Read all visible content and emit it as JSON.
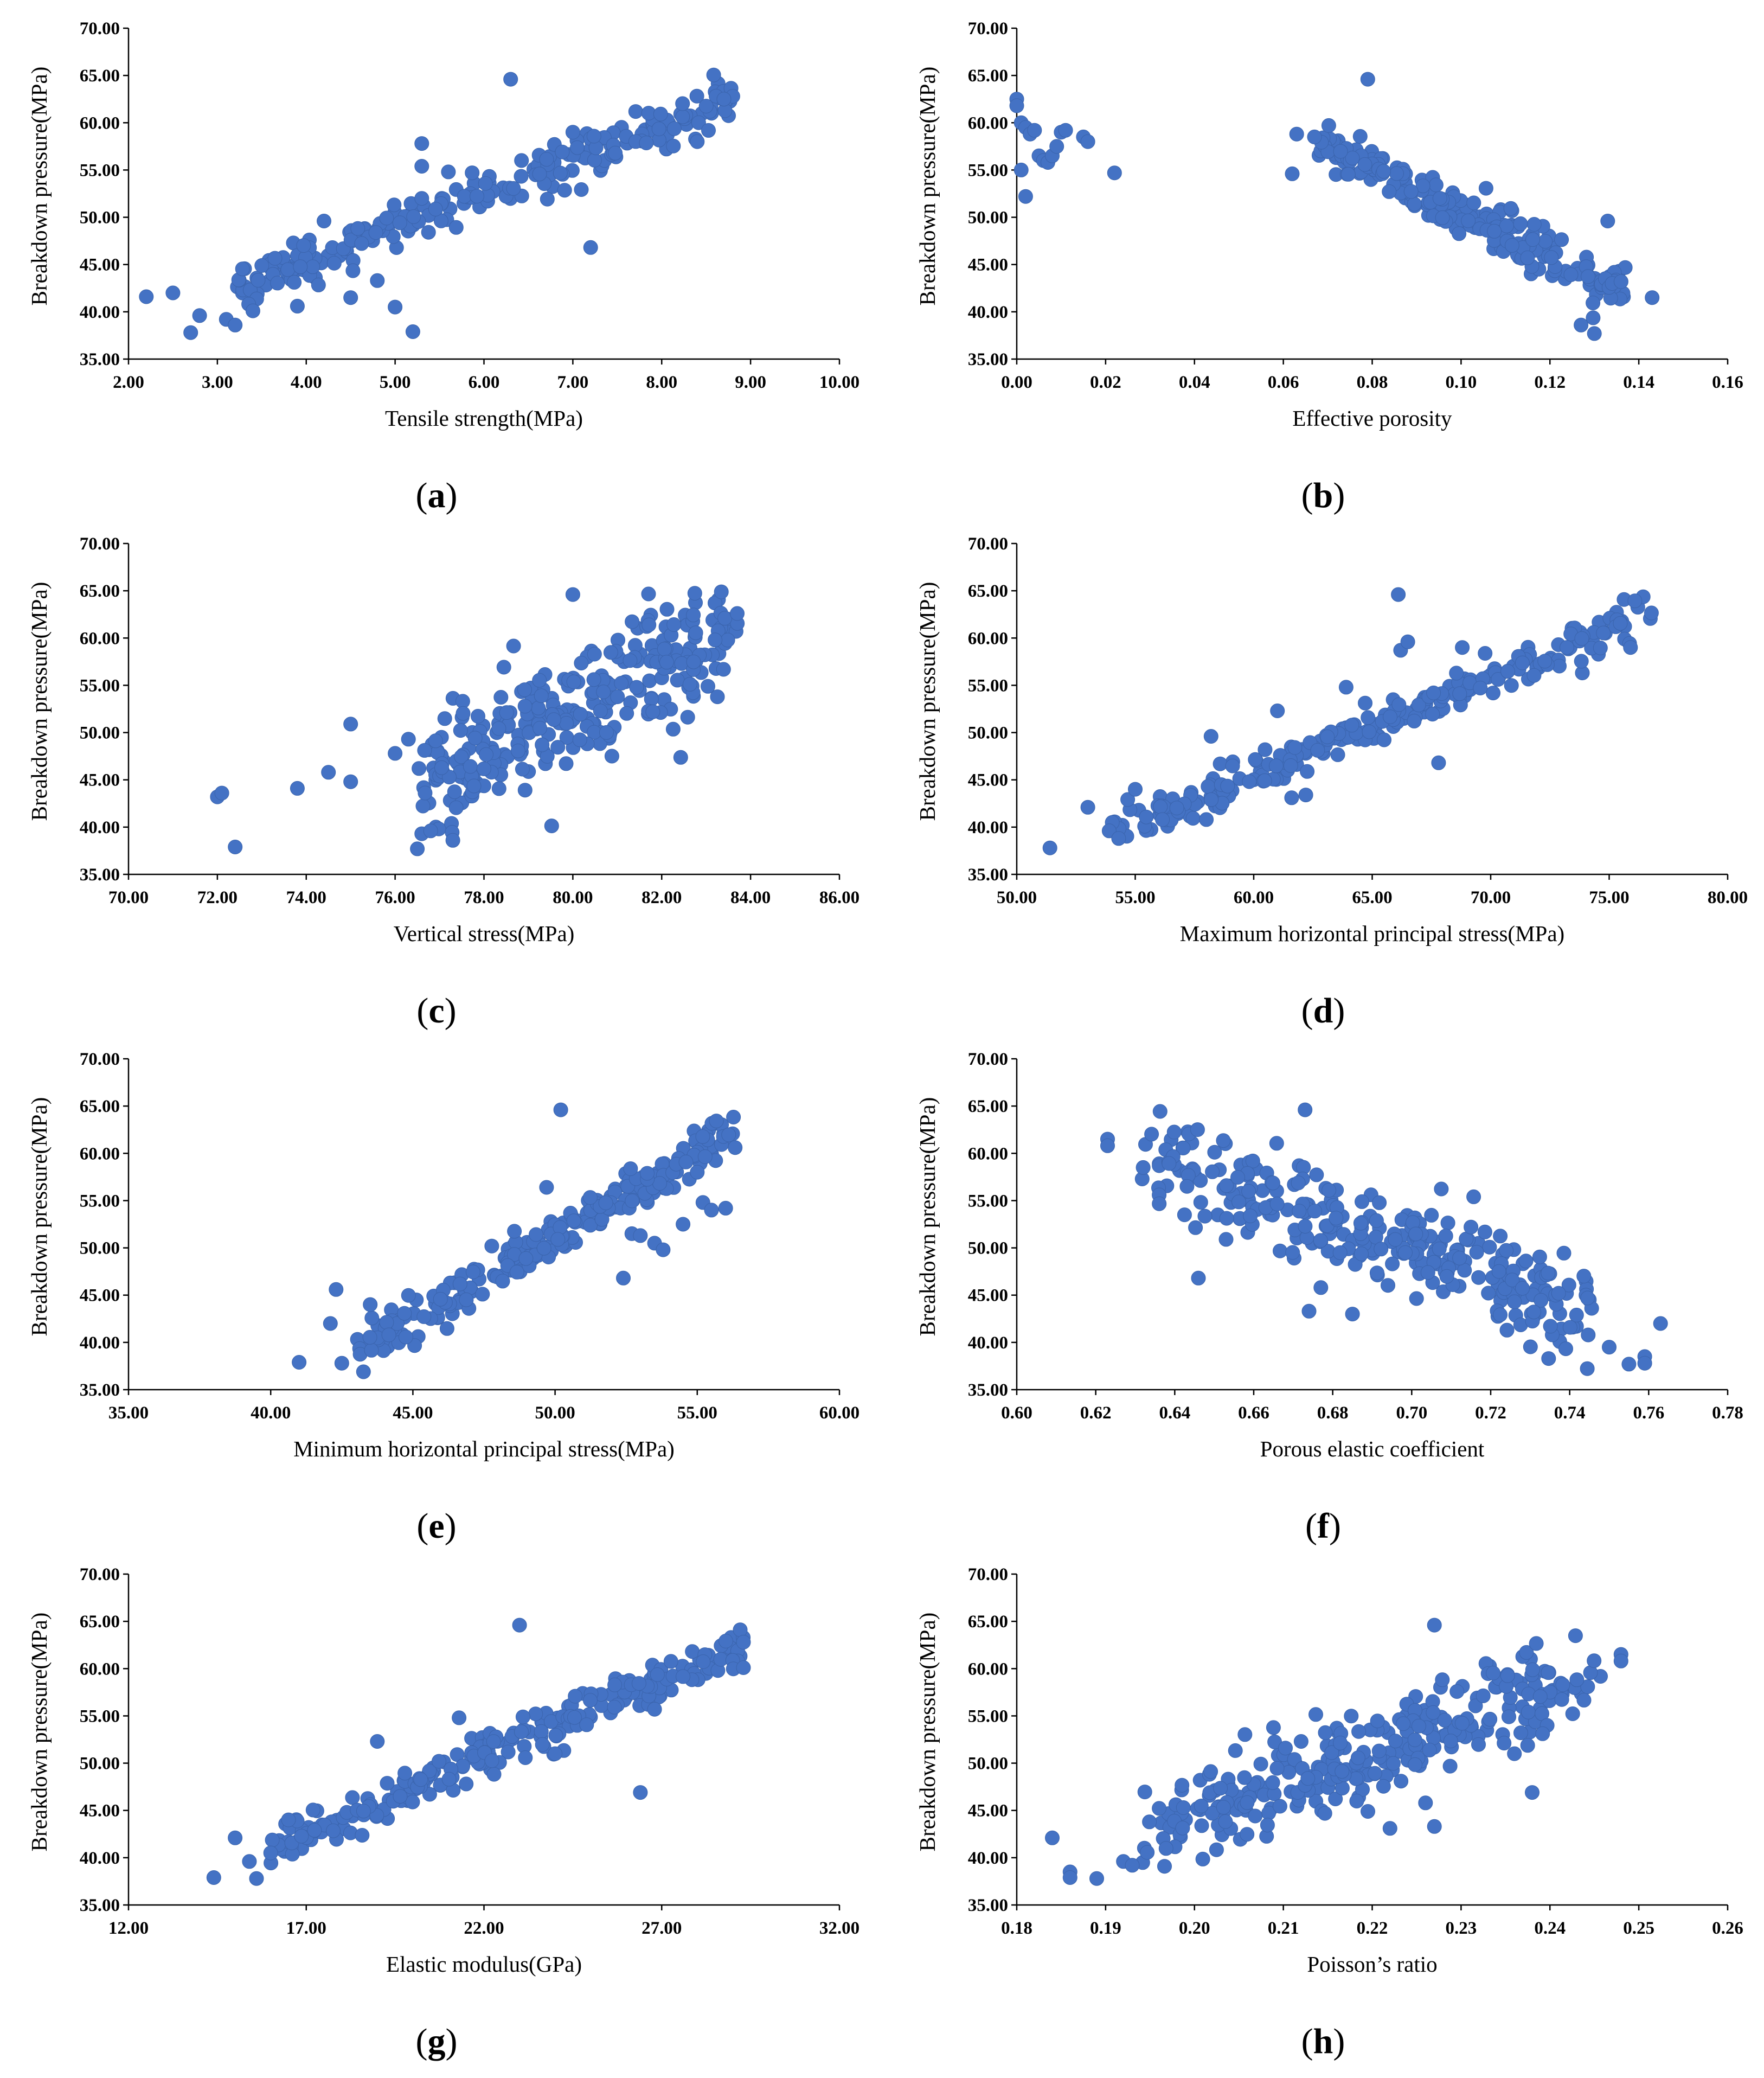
{
  "figure": {
    "marker_color": "#4472C4",
    "ylabel": "Breakdown pressure(MPa)"
  },
  "chart_data": [
    {
      "panel": "a",
      "type": "scatter",
      "title": "",
      "xlabel": "Tensile strength(MPa)",
      "ylabel": "Breakdown pressure(MPa)",
      "xlim": [
        2,
        10
      ],
      "ylim": [
        35,
        70
      ],
      "xticks": [
        2,
        3,
        4,
        5,
        6,
        7,
        8,
        9,
        10
      ],
      "xtick_labels": [
        "2.00",
        "3.00",
        "4.00",
        "5.00",
        "6.00",
        "7.00",
        "8.00",
        "9.00",
        "10.00"
      ],
      "yticks": [
        35,
        40,
        45,
        50,
        55,
        60,
        65,
        70
      ],
      "ytick_labels": [
        "35.00",
        "40.00",
        "45.00",
        "50.00",
        "55.00",
        "60.00",
        "65.00",
        "70.00"
      ],
      "trend": {
        "kind": "linear",
        "x0": 3.2,
        "y0": 42.5,
        "x1": 8.8,
        "y1": 62.5,
        "n": 240,
        "noise": 1.2
      },
      "points": [
        [
          2.2,
          41.6
        ],
        [
          2.5,
          42.0
        ],
        [
          2.7,
          37.8
        ],
        [
          2.8,
          39.6
        ],
        [
          3.1,
          39.2
        ],
        [
          3.2,
          38.6
        ],
        [
          3.4,
          40.1
        ],
        [
          3.5,
          44.9
        ],
        [
          3.9,
          40.6
        ],
        [
          4.2,
          49.6
        ],
        [
          4.5,
          41.5
        ],
        [
          4.8,
          43.3
        ],
        [
          5.0,
          40.5
        ],
        [
          5.3,
          57.8
        ],
        [
          5.3,
          55.4
        ],
        [
          5.6,
          54.8
        ],
        [
          6.3,
          64.6
        ],
        [
          7.2,
          46.8
        ],
        [
          7.0,
          59.0
        ],
        [
          8.4,
          58.0
        ],
        [
          8.8,
          62.8
        ],
        [
          8.7,
          62.5
        ],
        [
          5.2,
          37.9
        ],
        [
          5.3,
          52.0
        ]
      ]
    },
    {
      "panel": "b",
      "type": "scatter",
      "title": "",
      "xlabel": "Effective porosity",
      "ylabel": "Breakdown pressure(MPa)",
      "xlim": [
        0,
        0.16
      ],
      "ylim": [
        35,
        70
      ],
      "xticks": [
        0,
        0.02,
        0.04,
        0.06,
        0.08,
        0.1,
        0.12,
        0.14,
        0.16
      ],
      "xtick_labels": [
        "0.00",
        "0.02",
        "0.04",
        "0.06",
        "0.08",
        "0.10",
        "0.12",
        "0.14",
        "0.16"
      ],
      "yticks": [
        35,
        40,
        45,
        50,
        55,
        60,
        65,
        70
      ],
      "ytick_labels": [
        "35.00",
        "40.00",
        "45.00",
        "50.00",
        "55.00",
        "60.00",
        "65.00",
        "70.00"
      ],
      "trend": {
        "kind": "linear",
        "x0": 0.068,
        "y0": 58.0,
        "x1": 0.137,
        "y1": 42.0,
        "n": 230,
        "noise": 1.2
      },
      "points": [
        [
          0.0,
          62.5
        ],
        [
          0.0,
          61.8
        ],
        [
          0.001,
          60.0
        ],
        [
          0.002,
          59.5
        ],
        [
          0.003,
          58.8
        ],
        [
          0.004,
          59.2
        ],
        [
          0.001,
          55.0
        ],
        [
          0.002,
          52.2
        ],
        [
          0.005,
          56.5
        ],
        [
          0.006,
          56.0
        ],
        [
          0.007,
          55.8
        ],
        [
          0.008,
          56.5
        ],
        [
          0.009,
          57.5
        ],
        [
          0.01,
          59.0
        ],
        [
          0.011,
          59.2
        ],
        [
          0.015,
          58.5
        ],
        [
          0.016,
          58.0
        ],
        [
          0.022,
          54.7
        ],
        [
          0.062,
          54.6
        ],
        [
          0.063,
          58.8
        ],
        [
          0.067,
          58.5
        ],
        [
          0.079,
          64.6
        ],
        [
          0.133,
          49.6
        ],
        [
          0.143,
          41.5
        ],
        [
          0.13,
          37.7
        ],
        [
          0.127,
          38.6
        ],
        [
          0.134,
          43.0
        ],
        [
          0.136,
          43.2
        ]
      ]
    },
    {
      "panel": "c",
      "type": "scatter",
      "title": "",
      "xlabel": "Vertical stress(MPa)",
      "ylabel": "Breakdown pressure(MPa)",
      "xlim": [
        70,
        86
      ],
      "ylim": [
        35,
        70
      ],
      "xticks": [
        70,
        72,
        74,
        76,
        78,
        80,
        82,
        84,
        86
      ],
      "xtick_labels": [
        "70.00",
        "72.00",
        "74.00",
        "76.00",
        "78.00",
        "80.00",
        "82.00",
        "84.00",
        "86.00"
      ],
      "yticks": [
        35,
        40,
        45,
        50,
        55,
        60,
        65,
        70
      ],
      "ytick_labels": [
        "35.00",
        "40.00",
        "45.00",
        "50.00",
        "55.00",
        "60.00",
        "65.00",
        "70.00"
      ],
      "trend": {
        "kind": "cloud",
        "x0": 76.6,
        "y0": 45.0,
        "x1": 83.6,
        "y1": 60.5,
        "n": 300,
        "noise": 3.2
      },
      "points": [
        [
          72.0,
          43.2
        ],
        [
          72.1,
          43.6
        ],
        [
          72.4,
          37.9
        ],
        [
          73.8,
          44.1
        ],
        [
          74.5,
          45.8
        ],
        [
          75.0,
          50.9
        ],
        [
          75.0,
          44.8
        ],
        [
          76.0,
          47.8
        ],
        [
          76.3,
          49.3
        ],
        [
          76.5,
          37.7
        ],
        [
          76.6,
          39.3
        ],
        [
          76.8,
          39.6
        ],
        [
          77.3,
          38.6
        ],
        [
          80.0,
          64.6
        ],
        [
          81.8,
          52.2
        ],
        [
          83.7,
          62.6
        ],
        [
          83.2,
          59.8
        ]
      ]
    },
    {
      "panel": "d",
      "type": "scatter",
      "title": "",
      "xlabel": "Maximum horizontal principal stress(MPa)",
      "ylabel": "Breakdown pressure(MPa)",
      "xlim": [
        50,
        80
      ],
      "ylim": [
        35,
        70
      ],
      "xticks": [
        50,
        55,
        60,
        65,
        70,
        75,
        80
      ],
      "xtick_labels": [
        "50.00",
        "55.00",
        "60.00",
        "65.00",
        "70.00",
        "75.00",
        "80.00"
      ],
      "yticks": [
        35,
        40,
        45,
        50,
        55,
        60,
        65,
        70
      ],
      "ytick_labels": [
        "35.00",
        "40.00",
        "45.00",
        "50.00",
        "55.00",
        "60.00",
        "65.00",
        "70.00"
      ],
      "trend": {
        "kind": "linear",
        "x0": 54.0,
        "y0": 39.5,
        "x1": 76.8,
        "y1": 62.6,
        "n": 250,
        "noise": 1.1
      },
      "points": [
        [
          51.4,
          37.8
        ],
        [
          53.0,
          42.1
        ],
        [
          53.9,
          39.6
        ],
        [
          54.3,
          38.8
        ],
        [
          55.0,
          44.0
        ],
        [
          58.0,
          40.8
        ],
        [
          58.2,
          49.6
        ],
        [
          61.0,
          52.3
        ],
        [
          61.6,
          43.1
        ],
        [
          62.2,
          43.4
        ],
        [
          63.9,
          54.8
        ],
        [
          66.1,
          64.6
        ],
        [
          66.2,
          58.7
        ],
        [
          66.5,
          59.6
        ],
        [
          67.8,
          46.8
        ],
        [
          68.8,
          59.0
        ],
        [
          75.9,
          59.0
        ]
      ]
    },
    {
      "panel": "e",
      "type": "scatter",
      "title": "",
      "xlabel": "Minimum horizontal principal stress(MPa)",
      "ylabel": "Breakdown pressure(MPa)",
      "xlim": [
        35,
        60
      ],
      "ylim": [
        35,
        70
      ],
      "xticks": [
        35,
        40,
        45,
        50,
        55,
        60
      ],
      "xtick_labels": [
        "35.00",
        "40.00",
        "45.00",
        "50.00",
        "55.00",
        "60.00"
      ],
      "yticks": [
        35,
        40,
        45,
        50,
        55,
        60,
        65,
        70
      ],
      "ytick_labels": [
        "35.00",
        "40.00",
        "45.00",
        "50.00",
        "55.00",
        "60.00",
        "65.00",
        "70.00"
      ],
      "trend": {
        "kind": "linear",
        "x0": 43.0,
        "y0": 39.0,
        "x1": 56.4,
        "y1": 62.6,
        "n": 250,
        "noise": 1.2
      },
      "points": [
        [
          41.0,
          37.9
        ],
        [
          42.1,
          42.0
        ],
        [
          42.3,
          45.6
        ],
        [
          42.5,
          37.8
        ],
        [
          43.5,
          44.0
        ],
        [
          50.2,
          64.6
        ],
        [
          49.7,
          56.4
        ],
        [
          50.1,
          50.9
        ],
        [
          52.4,
          46.8
        ],
        [
          52.7,
          51.5
        ],
        [
          53.0,
          51.3
        ],
        [
          53.5,
          50.5
        ],
        [
          53.8,
          49.8
        ],
        [
          54.5,
          52.5
        ],
        [
          55.0,
          58.0
        ],
        [
          55.2,
          54.8
        ],
        [
          55.5,
          54.0
        ],
        [
          56.0,
          54.2
        ]
      ]
    },
    {
      "panel": "f",
      "type": "scatter",
      "title": "",
      "xlabel": "Porous elastic coefficient",
      "ylabel": "Breakdown pressure(MPa)",
      "xlim": [
        0.6,
        0.78
      ],
      "ylim": [
        35,
        70
      ],
      "xticks": [
        0.6,
        0.62,
        0.64,
        0.66,
        0.68,
        0.7,
        0.72,
        0.74,
        0.76,
        0.78
      ],
      "xtick_labels": [
        "0.60",
        "0.62",
        "0.64",
        "0.66",
        "0.68",
        "0.70",
        "0.72",
        "0.74",
        "0.76",
        "0.78"
      ],
      "yticks": [
        35,
        40,
        45,
        50,
        55,
        60,
        65,
        70
      ],
      "ytick_labels": [
        "35.00",
        "40.00",
        "45.00",
        "50.00",
        "55.00",
        "60.00",
        "65.00",
        "70.00"
      ],
      "trend": {
        "kind": "cloud",
        "x0": 0.635,
        "y0": 60.0,
        "x1": 0.745,
        "y1": 43.0,
        "n": 300,
        "noise": 2.6
      },
      "points": [
        [
          0.623,
          61.5
        ],
        [
          0.623,
          60.8
        ],
        [
          0.632,
          58.5
        ],
        [
          0.646,
          46.8
        ],
        [
          0.653,
          50.9
        ],
        [
          0.673,
          64.6
        ],
        [
          0.674,
          43.3
        ],
        [
          0.677,
          45.8
        ],
        [
          0.685,
          43.0
        ],
        [
          0.715,
          52.2
        ],
        [
          0.75,
          39.5
        ],
        [
          0.755,
          37.7
        ],
        [
          0.759,
          38.5
        ],
        [
          0.759,
          37.8
        ],
        [
          0.763,
          42.0
        ]
      ]
    },
    {
      "panel": "g",
      "type": "scatter",
      "title": "",
      "xlabel": "Elastic modulus(GPa)",
      "ylabel": "Breakdown pressure(MPa)",
      "xlim": [
        12,
        32
      ],
      "ylim": [
        35,
        70
      ],
      "xticks": [
        12,
        17,
        22,
        27,
        32
      ],
      "xtick_labels": [
        "12.00",
        "17.00",
        "22.00",
        "27.00",
        "32.00"
      ],
      "yticks": [
        35,
        40,
        45,
        50,
        55,
        60,
        65,
        70
      ],
      "ytick_labels": [
        "35.00",
        "40.00",
        "45.00",
        "50.00",
        "55.00",
        "60.00",
        "65.00",
        "70.00"
      ],
      "trend": {
        "kind": "linear",
        "x0": 16.0,
        "y0": 41.0,
        "x1": 29.3,
        "y1": 62.5,
        "n": 250,
        "noise": 1.1
      },
      "points": [
        [
          14.4,
          37.9
        ],
        [
          15.0,
          42.1
        ],
        [
          15.4,
          39.6
        ],
        [
          15.6,
          37.8
        ],
        [
          16.0,
          40.5
        ],
        [
          16.5,
          44.0
        ],
        [
          19.0,
          52.3
        ],
        [
          21.3,
          54.8
        ],
        [
          21.5,
          47.8
        ],
        [
          23.0,
          64.6
        ],
        [
          24.0,
          51.0
        ],
        [
          26.4,
          46.9
        ],
        [
          26.8,
          55.7
        ],
        [
          29.3,
          60.1
        ],
        [
          29.3,
          62.8
        ]
      ]
    },
    {
      "panel": "h",
      "type": "scatter",
      "title": "",
      "xlabel": "Poisson’s ratio",
      "ylabel": "Breakdown pressure(MPa)",
      "xlim": [
        0.18,
        0.26
      ],
      "ylim": [
        35,
        70
      ],
      "xticks": [
        0.18,
        0.19,
        0.2,
        0.21,
        0.22,
        0.23,
        0.24,
        0.25,
        0.26
      ],
      "xtick_labels": [
        "0.18",
        "0.19",
        "0.20",
        "0.21",
        "0.22",
        "0.23",
        "0.24",
        "0.25",
        "0.26"
      ],
      "yticks": [
        35,
        40,
        45,
        50,
        55,
        60,
        65,
        70
      ],
      "ytick_labels": [
        "35.00",
        "40.00",
        "45.00",
        "50.00",
        "55.00",
        "60.00",
        "65.00",
        "70.00"
      ],
      "trend": {
        "kind": "cloud",
        "x0": 0.195,
        "y0": 42.5,
        "x1": 0.244,
        "y1": 60.0,
        "n": 300,
        "noise": 2.4
      },
      "points": [
        [
          0.184,
          42.1
        ],
        [
          0.186,
          38.5
        ],
        [
          0.186,
          37.9
        ],
        [
          0.189,
          37.8
        ],
        [
          0.192,
          39.6
        ],
        [
          0.193,
          39.2
        ],
        [
          0.212,
          52.3
        ],
        [
          0.222,
          43.1
        ],
        [
          0.226,
          45.8
        ],
        [
          0.227,
          64.6
        ],
        [
          0.227,
          43.3
        ],
        [
          0.236,
          51.0
        ],
        [
          0.238,
          46.9
        ],
        [
          0.248,
          61.5
        ],
        [
          0.248,
          60.8
        ]
      ]
    }
  ]
}
